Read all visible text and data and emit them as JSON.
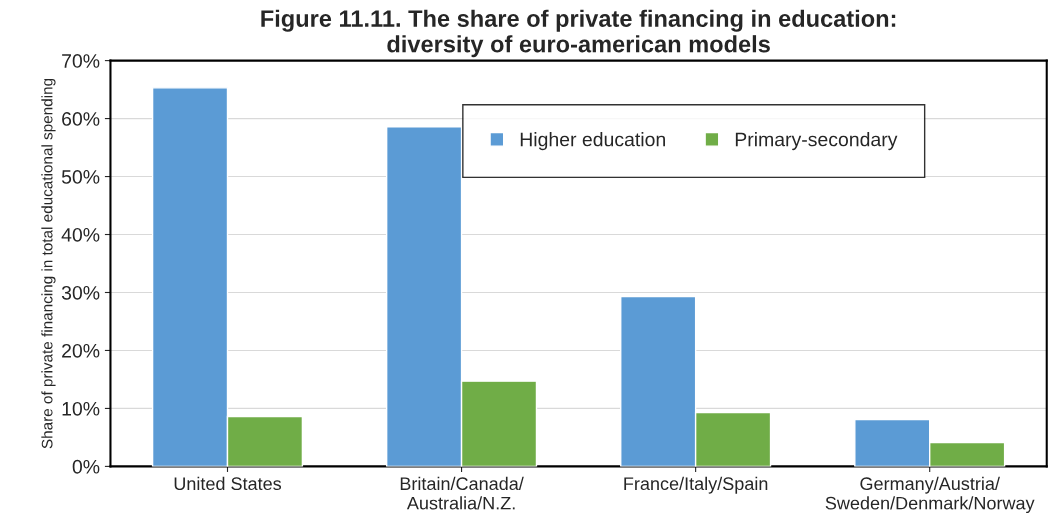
{
  "chart_data": {
    "type": "bar",
    "title": "Figure 11.11. The share of private financing in education:\ndiversity of euro-american models",
    "ylabel": "Share of private financing in total educational spending",
    "categories": [
      "United States",
      "Britain/Canada/\nAustralia/N.Z.",
      "France/Italy/Spain",
      "Germany/Austria/\nSweden/Denmark/Norway"
    ],
    "series": [
      {
        "name": "Higher education",
        "color": "#5b9bd5",
        "values": [
          65.3,
          58.6,
          29.3,
          8.1
        ]
      },
      {
        "name": "Primary-secondary",
        "color": "#70ad47",
        "values": [
          8.6,
          14.7,
          9.3,
          4.1
        ]
      }
    ],
    "ylim": [
      0,
      70
    ],
    "yticks": [
      {
        "value": 0,
        "label": "0%"
      },
      {
        "value": 10,
        "label": "10%"
      },
      {
        "value": 20,
        "label": "20%"
      },
      {
        "value": 30,
        "label": "30%"
      },
      {
        "value": 40,
        "label": "40%"
      },
      {
        "value": 50,
        "label": "50%"
      },
      {
        "value": 60,
        "label": "60%"
      },
      {
        "value": 70,
        "label": "70%"
      }
    ],
    "grid": "y",
    "legend": "top right"
  }
}
